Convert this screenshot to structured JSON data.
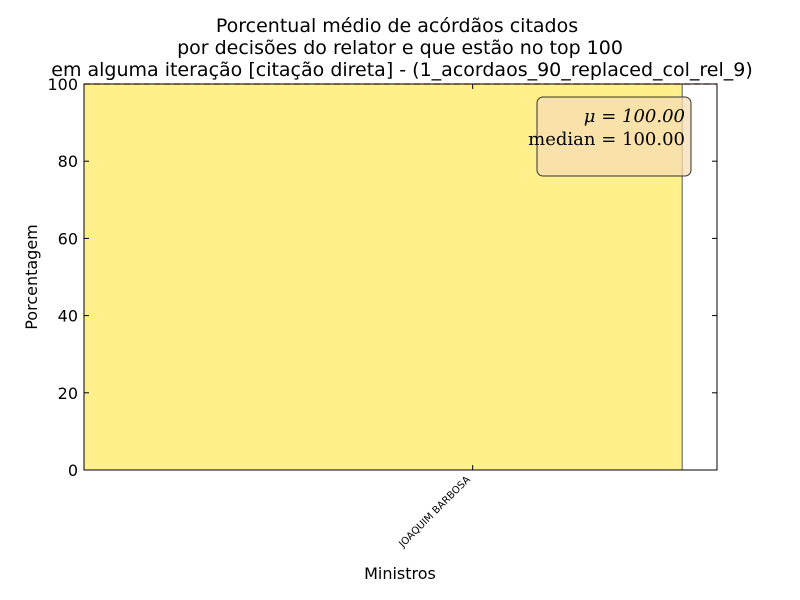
{
  "chart_data": {
    "type": "bar",
    "title_lines": [
      "Porcentual médio de acórdãos citados",
      "por decisões do relator e que estão no top 100",
      "em alguma iteração [citação direta] - (1_acordaos_90_replaced_col_rel_9)"
    ],
    "xlabel": "Ministros",
    "ylabel": "Porcentagem",
    "categories": [
      "JOAQUIM BARBOSA"
    ],
    "values": [
      100.0
    ],
    "ylim": [
      0,
      100
    ],
    "yticks": [
      "0",
      "20",
      "40",
      "60",
      "80",
      "100"
    ],
    "reference_line": 100.0,
    "stats_box": {
      "mean_label": "μ = 100.00",
      "median_label": "median = 100.00"
    },
    "grid": false,
    "colors": {
      "bar": "#fff08c",
      "bar_edge": "#555555",
      "reference_line": "#cc0000",
      "stats_box_fill": "#f5deb3",
      "stats_box_edge": "#333333"
    }
  }
}
